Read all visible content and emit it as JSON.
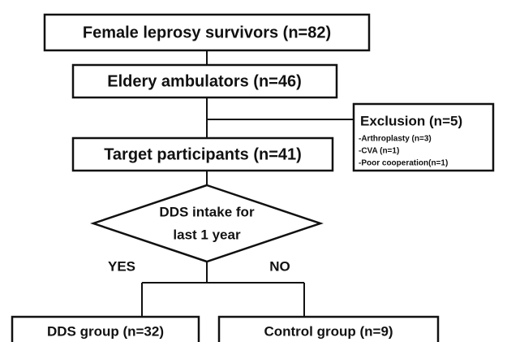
{
  "nodes": [
    {
      "label": "Female leprosy survivors (n=82)"
    },
    {
      "label": "Eldery ambulators (n=46)"
    },
    {
      "label": "Target participants (n=41)"
    }
  ],
  "exclusion": {
    "title": "Exclusion (n=5)",
    "items": [
      "-Arthroplasty (n=3)",
      "-CVA (n=1)",
      "-Poor cooperation(n=1)"
    ]
  },
  "decision": {
    "lines": [
      "DDS intake for",
      "last 1 year"
    ]
  },
  "branches": {
    "yes": "YES",
    "no": "NO"
  },
  "outcomes": [
    {
      "label": "DDS group (n=32)"
    },
    {
      "label": "Control group (n=9)"
    }
  ]
}
